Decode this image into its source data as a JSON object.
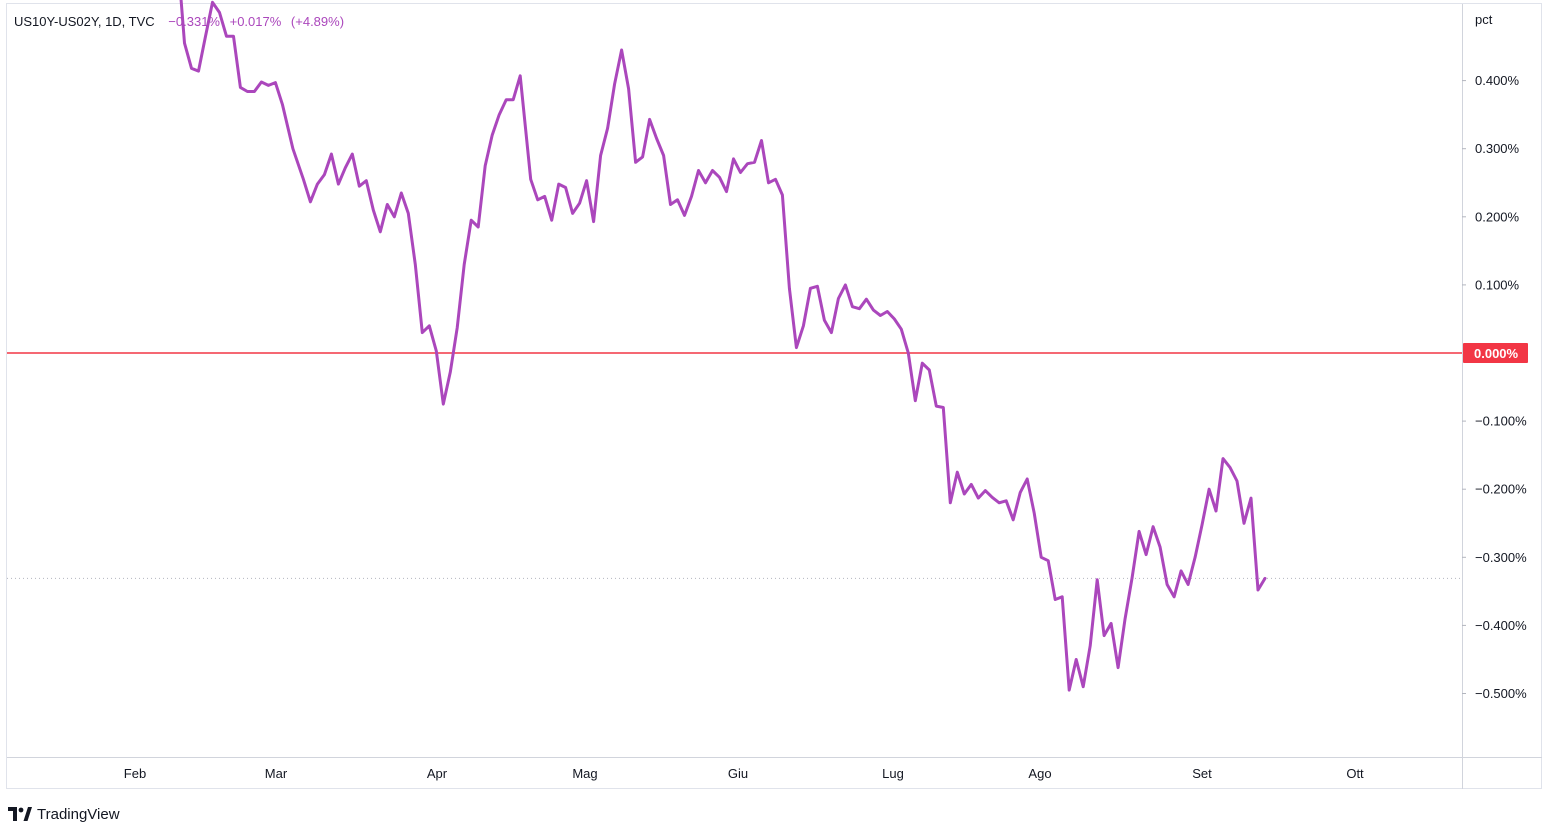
{
  "legend": {
    "symbol": "US10Y-US02Y, 1D, TVC",
    "last": "−0.331%",
    "change": "+0.017%",
    "change_pct": "(+4.89%)"
  },
  "brand": {
    "name": "TradingView",
    "logo_icon": "tradingview-logo-icon"
  },
  "colors": {
    "line": "#ab47bc",
    "zero_line": "#f23645",
    "zero_label_bg": "#f23645",
    "grid": "#e0e3eb"
  },
  "chart_data": {
    "type": "line",
    "title": "",
    "unit_label": "pct",
    "ylim": [
      -0.585,
      0.515
    ],
    "y_ticks": [
      {
        "value": 0.4,
        "label": "0.400%"
      },
      {
        "value": 0.3,
        "label": "0.300%"
      },
      {
        "value": 0.2,
        "label": "0.200%"
      },
      {
        "value": 0.1,
        "label": "0.100%"
      },
      {
        "value": -0.1,
        "label": "−0.100%"
      },
      {
        "value": -0.2,
        "label": "−0.200%"
      },
      {
        "value": -0.3,
        "label": "−0.300%"
      },
      {
        "value": -0.4,
        "label": "−0.400%"
      },
      {
        "value": -0.5,
        "label": "−0.500%"
      }
    ],
    "zero_line": {
      "value": 0.0,
      "label": "0.000%"
    },
    "last_value_line": -0.331,
    "x_range": [
      0,
      200
    ],
    "x_ticks": [
      {
        "label": "Feb",
        "pos": 18
      },
      {
        "label": "Mar",
        "pos": 40
      },
      {
        "label": "Apr",
        "pos": 62
      },
      {
        "label": "Mag",
        "pos": 84
      },
      {
        "label": "Giu",
        "pos": 106
      },
      {
        "label": "Lug",
        "pos": 128
      },
      {
        "label": "Ago",
        "pos": 149
      },
      {
        "label": "Set",
        "pos": 172
      },
      {
        "label": "Ott",
        "pos": 194
      }
    ],
    "series": [
      {
        "values": [
          [
            24.5,
            0.52
          ],
          [
            25.0,
            0.455
          ],
          [
            26.0,
            0.418
          ],
          [
            27.0,
            0.414
          ],
          [
            28.0,
            0.465
          ],
          [
            29.0,
            0.515
          ],
          [
            30.0,
            0.5
          ],
          [
            31.0,
            0.465
          ],
          [
            32.0,
            0.465
          ],
          [
            33.0,
            0.39
          ],
          [
            34.0,
            0.384
          ],
          [
            35.0,
            0.384
          ],
          [
            36.0,
            0.398
          ],
          [
            37.0,
            0.393
          ],
          [
            38.0,
            0.397
          ],
          [
            39.0,
            0.365
          ],
          [
            40.5,
            0.3
          ],
          [
            42.0,
            0.255
          ],
          [
            43.0,
            0.222
          ],
          [
            44.0,
            0.248
          ],
          [
            45.0,
            0.262
          ],
          [
            46.0,
            0.292
          ],
          [
            47.0,
            0.248
          ],
          [
            48.0,
            0.272
          ],
          [
            49.0,
            0.292
          ],
          [
            50.0,
            0.245
          ],
          [
            51.0,
            0.253
          ],
          [
            52.0,
            0.21
          ],
          [
            53.0,
            0.178
          ],
          [
            54.0,
            0.218
          ],
          [
            55.0,
            0.2
          ],
          [
            56.0,
            0.235
          ],
          [
            57.0,
            0.205
          ],
          [
            58.0,
            0.13
          ],
          [
            59.0,
            0.03
          ],
          [
            60.0,
            0.04
          ],
          [
            61.0,
            0.003
          ],
          [
            62.0,
            -0.075
          ],
          [
            63.0,
            -0.028
          ],
          [
            64.0,
            0.037
          ],
          [
            65.0,
            0.13
          ],
          [
            66.0,
            0.195
          ],
          [
            67.0,
            0.185
          ],
          [
            68.0,
            0.275
          ],
          [
            69.0,
            0.32
          ],
          [
            70.0,
            0.35
          ],
          [
            71.0,
            0.372
          ],
          [
            72.0,
            0.372
          ],
          [
            73.0,
            0.407
          ],
          [
            74.5,
            0.255
          ],
          [
            75.5,
            0.225
          ],
          [
            76.5,
            0.23
          ],
          [
            77.5,
            0.195
          ],
          [
            78.5,
            0.248
          ],
          [
            79.5,
            0.243
          ],
          [
            80.5,
            0.205
          ],
          [
            81.5,
            0.22
          ],
          [
            82.5,
            0.253
          ],
          [
            83.5,
            0.193
          ],
          [
            84.5,
            0.29
          ],
          [
            85.5,
            0.33
          ],
          [
            86.5,
            0.395
          ],
          [
            87.5,
            0.445
          ],
          [
            88.5,
            0.388
          ],
          [
            89.5,
            0.28
          ],
          [
            90.5,
            0.288
          ],
          [
            91.5,
            0.343
          ],
          [
            92.5,
            0.315
          ],
          [
            93.5,
            0.29
          ],
          [
            94.5,
            0.218
          ],
          [
            95.5,
            0.225
          ],
          [
            96.5,
            0.202
          ],
          [
            97.5,
            0.23
          ],
          [
            98.5,
            0.268
          ],
          [
            99.5,
            0.25
          ],
          [
            100.5,
            0.268
          ],
          [
            101.5,
            0.258
          ],
          [
            102.5,
            0.237
          ],
          [
            103.5,
            0.285
          ],
          [
            104.5,
            0.265
          ],
          [
            105.5,
            0.278
          ],
          [
            106.5,
            0.28
          ],
          [
            107.5,
            0.312
          ],
          [
            108.5,
            0.25
          ],
          [
            109.5,
            0.255
          ],
          [
            110.5,
            0.232
          ],
          [
            111.5,
            0.095
          ],
          [
            112.5,
            0.008
          ],
          [
            113.5,
            0.04
          ],
          [
            114.5,
            0.095
          ],
          [
            115.5,
            0.098
          ],
          [
            116.5,
            0.048
          ],
          [
            117.5,
            0.03
          ],
          [
            118.5,
            0.08
          ],
          [
            119.5,
            0.1
          ],
          [
            120.5,
            0.068
          ],
          [
            121.5,
            0.065
          ],
          [
            122.5,
            0.079
          ],
          [
            123.5,
            0.063
          ],
          [
            124.5,
            0.055
          ],
          [
            125.5,
            0.061
          ],
          [
            126.5,
            0.05
          ],
          [
            127.5,
            0.035
          ],
          [
            128.5,
            0.0
          ],
          [
            129.5,
            -0.07
          ],
          [
            130.5,
            -0.015
          ],
          [
            131.5,
            -0.025
          ],
          [
            132.5,
            -0.078
          ],
          [
            133.5,
            -0.08
          ],
          [
            134.5,
            -0.22
          ],
          [
            135.5,
            -0.175
          ],
          [
            136.5,
            -0.207
          ],
          [
            137.5,
            -0.193
          ],
          [
            138.5,
            -0.213
          ],
          [
            139.5,
            -0.202
          ],
          [
            140.5,
            -0.212
          ],
          [
            141.5,
            -0.22
          ],
          [
            142.5,
            -0.217
          ],
          [
            143.5,
            -0.245
          ],
          [
            144.5,
            -0.205
          ],
          [
            145.5,
            -0.185
          ],
          [
            146.5,
            -0.235
          ],
          [
            147.5,
            -0.3
          ],
          [
            148.5,
            -0.305
          ],
          [
            149.5,
            -0.362
          ],
          [
            150.5,
            -0.358
          ],
          [
            151.5,
            -0.495
          ],
          [
            152.5,
            -0.45
          ],
          [
            153.5,
            -0.49
          ],
          [
            154.5,
            -0.43
          ],
          [
            155.5,
            -0.333
          ],
          [
            156.5,
            -0.415
          ],
          [
            157.5,
            -0.397
          ],
          [
            158.5,
            -0.462
          ],
          [
            159.5,
            -0.39
          ],
          [
            160.5,
            -0.33
          ],
          [
            161.5,
            -0.262
          ],
          [
            162.5,
            -0.296
          ],
          [
            163.5,
            -0.255
          ],
          [
            164.5,
            -0.285
          ],
          [
            165.5,
            -0.34
          ],
          [
            166.5,
            -0.358
          ],
          [
            167.5,
            -0.32
          ],
          [
            168.5,
            -0.34
          ],
          [
            169.5,
            -0.3
          ],
          [
            170.5,
            -0.252
          ],
          [
            171.5,
            -0.2
          ],
          [
            172.5,
            -0.232
          ],
          [
            173.5,
            -0.155
          ],
          [
            174.5,
            -0.168
          ],
          [
            175.5,
            -0.188
          ],
          [
            176.5,
            -0.25
          ],
          [
            177.5,
            -0.213
          ],
          [
            178.5,
            -0.348
          ],
          [
            179.5,
            -0.331
          ]
        ]
      }
    ]
  }
}
